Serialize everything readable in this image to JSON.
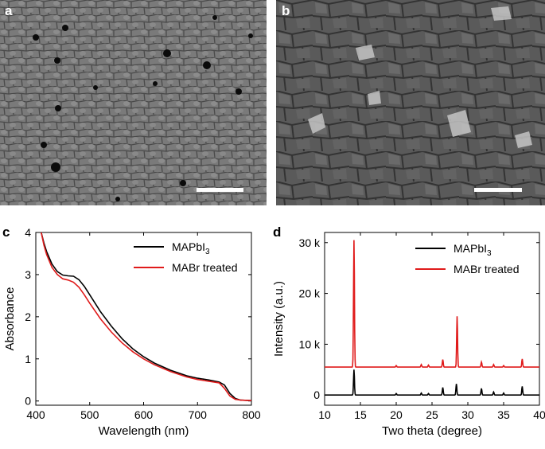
{
  "panels": {
    "a": {
      "label": "a"
    },
    "b": {
      "label": "b"
    },
    "c": {
      "label": "c"
    },
    "d": {
      "label": "d"
    }
  },
  "colors": {
    "mapbi3": "#000000",
    "mabr": "#e01b1b",
    "sem_bg": "#6e6e6e"
  },
  "chart_data": [
    {
      "type": "line",
      "panel": "c",
      "title": "",
      "xlabel": "Wavelength (nm)",
      "ylabel": "Absorbance",
      "xlim": [
        400,
        800
      ],
      "ylim": [
        -0.1,
        4
      ],
      "xticks": [
        "400",
        "500",
        "600",
        "700",
        "800"
      ],
      "yticks": [
        "0",
        "1",
        "2",
        "3",
        "4"
      ],
      "legend_position": "top-right",
      "series": [
        {
          "name": "MAPbI3",
          "legend_main": "MAPbI",
          "legend_sub": "3",
          "color": "#000000",
          "x": [
            410,
            415,
            420,
            430,
            440,
            450,
            460,
            470,
            480,
            490,
            500,
            520,
            540,
            560,
            580,
            600,
            620,
            650,
            680,
            700,
            720,
            740,
            750,
            760,
            770,
            780,
            800
          ],
          "y": [
            4.0,
            3.75,
            3.55,
            3.25,
            3.07,
            2.99,
            2.97,
            2.96,
            2.88,
            2.72,
            2.52,
            2.12,
            1.78,
            1.48,
            1.24,
            1.05,
            0.9,
            0.73,
            0.6,
            0.54,
            0.5,
            0.45,
            0.38,
            0.18,
            0.06,
            0.02,
            0.01
          ]
        },
        {
          "name": "MABr treated",
          "legend_main": "MABr treated",
          "legend_sub": "",
          "color": "#e01b1b",
          "x": [
            410,
            415,
            420,
            430,
            440,
            450,
            460,
            470,
            480,
            490,
            500,
            520,
            540,
            560,
            580,
            600,
            620,
            650,
            680,
            700,
            720,
            740,
            750,
            760,
            770,
            780,
            800
          ],
          "y": [
            4.0,
            3.7,
            3.48,
            3.17,
            3.0,
            2.9,
            2.87,
            2.82,
            2.7,
            2.52,
            2.32,
            1.95,
            1.64,
            1.38,
            1.17,
            1.0,
            0.86,
            0.7,
            0.57,
            0.51,
            0.47,
            0.43,
            0.3,
            0.12,
            0.04,
            0.02,
            0.01
          ]
        }
      ]
    },
    {
      "type": "line",
      "panel": "d",
      "title": "",
      "xlabel": "Two theta (degree)",
      "ylabel": "Intensity (a.u.)",
      "xlim": [
        10,
        40
      ],
      "ylim": [
        -2000,
        32000
      ],
      "xticks": [
        "10",
        "15",
        "20",
        "25",
        "30",
        "35",
        "40"
      ],
      "yticks": [
        "0",
        "10 k",
        "20 k",
        "30 k"
      ],
      "ytick_values": [
        0,
        10000,
        20000,
        30000
      ],
      "legend_position": "top-right",
      "series": [
        {
          "name": "MAPbI3",
          "legend_main": "MAPbI",
          "legend_sub": "3",
          "color": "#000000",
          "baseline": 0,
          "peaks": [
            [
              14.1,
              5000
            ],
            [
              20.0,
              300
            ],
            [
              23.5,
              400
            ],
            [
              24.5,
              300
            ],
            [
              26.5,
              1500
            ],
            [
              28.4,
              2200
            ],
            [
              31.9,
              1300
            ],
            [
              33.6,
              600
            ],
            [
              35.0,
              400
            ],
            [
              37.6,
              1700
            ]
          ]
        },
        {
          "name": "MABr treated",
          "legend_main": "MABr treated",
          "legend_sub": "",
          "color": "#e01b1b",
          "baseline": 5500,
          "peaks": [
            [
              14.1,
              25000
            ],
            [
              20.0,
              300
            ],
            [
              23.5,
              500
            ],
            [
              24.5,
              400
            ],
            [
              26.5,
              1500
            ],
            [
              28.5,
              10000
            ],
            [
              31.9,
              1000
            ],
            [
              33.6,
              500
            ],
            [
              35.0,
              300
            ],
            [
              37.6,
              1600
            ]
          ]
        }
      ]
    }
  ]
}
